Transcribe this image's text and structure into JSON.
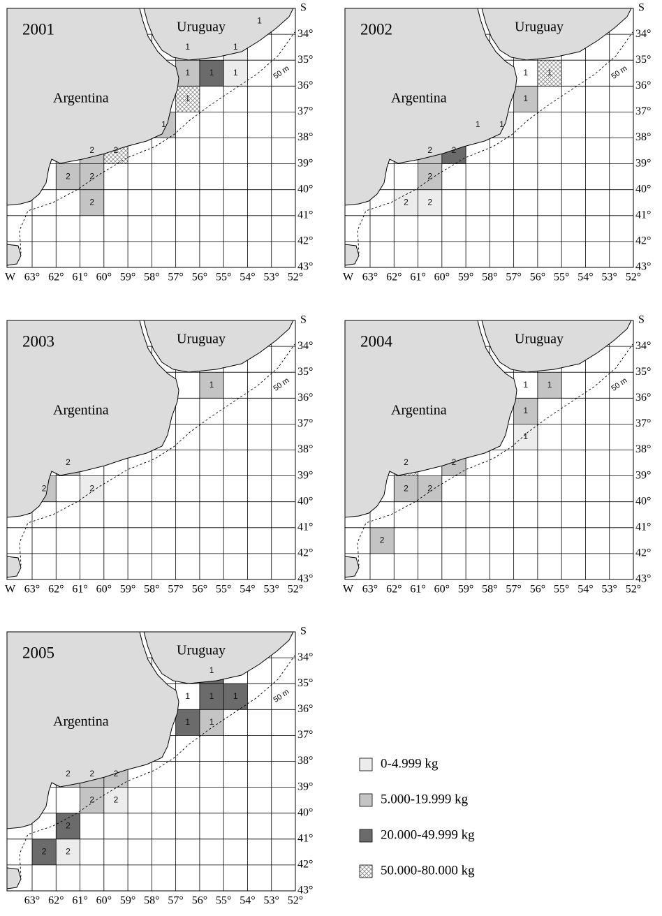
{
  "map": {
    "country_west": "Argentina",
    "country_north": "Uruguay",
    "isobath": "50 m",
    "west": "W",
    "south": "S",
    "lon_labels": [
      "63°",
      "62°",
      "61°",
      "60°",
      "59°",
      "58°",
      "57°",
      "56°",
      "55°",
      "54°",
      "53°",
      "52°"
    ],
    "lat_labels": [
      "34°",
      "35°",
      "36°",
      "37°",
      "38°",
      "39°",
      "40°",
      "41°",
      "42°",
      "43°"
    ]
  },
  "legend": [
    {
      "label": "0-4.999 kg",
      "color": "#ececec",
      "hatch": false
    },
    {
      "label": "5.000-19.999 kg",
      "color": "#c4c4c4",
      "hatch": false
    },
    {
      "label": "20.000-49.999 kg",
      "color": "#6b6b6b",
      "hatch": false
    },
    {
      "label": "50.000-80.000 kg",
      "color": "#ffffff",
      "hatch": true
    }
  ],
  "panels": [
    {
      "year": "2001",
      "cells": [
        {
          "lon": 54,
          "lat": 34,
          "label": "1",
          "class": 1
        },
        {
          "lon": 57,
          "lat": 35,
          "label": "1",
          "class": 0
        },
        {
          "lon": 55,
          "lat": 35,
          "label": "1",
          "class": 0
        },
        {
          "lon": 57,
          "lat": 36,
          "label": "1",
          "class": 1
        },
        {
          "lon": 56,
          "lat": 36,
          "label": "1",
          "class": 2
        },
        {
          "lon": 55,
          "lat": 36,
          "label": "1",
          "class": 0
        },
        {
          "lon": 57,
          "lat": 37,
          "label": "1",
          "class": 3
        },
        {
          "lon": 58,
          "lat": 38,
          "label": "1",
          "class": 1
        },
        {
          "lon": 61,
          "lat": 39,
          "label": "2",
          "class": 1
        },
        {
          "lon": 60,
          "lat": 39,
          "label": "2",
          "class": 3
        },
        {
          "lon": 62,
          "lat": 40,
          "label": "2",
          "class": 1
        },
        {
          "lon": 61,
          "lat": 40,
          "label": "2",
          "class": 1
        },
        {
          "lon": 61,
          "lat": 41,
          "label": "2",
          "class": 1
        }
      ]
    },
    {
      "year": "2002",
      "cells": [
        {
          "lon": 57,
          "lat": 36,
          "label": "1",
          "class": null
        },
        {
          "lon": 56,
          "lat": 36,
          "label": "1",
          "class": 3
        },
        {
          "lon": 57,
          "lat": 37,
          "label": "1",
          "class": 1
        },
        {
          "lon": 58,
          "lat": 38,
          "label": "1",
          "class": 0
        },
        {
          "lon": 59,
          "lat": 38,
          "label": "1",
          "class": null
        },
        {
          "lon": 61,
          "lat": 39,
          "label": "2",
          "class": 1
        },
        {
          "lon": 60,
          "lat": 39,
          "label": "2",
          "class": 2
        },
        {
          "lon": 61,
          "lat": 40,
          "label": "2",
          "class": 1
        },
        {
          "lon": 62,
          "lat": 41,
          "label": "2",
          "class": 0
        },
        {
          "lon": 61,
          "lat": 41,
          "label": "2",
          "class": 0
        }
      ]
    },
    {
      "year": "2003",
      "cells": [
        {
          "lon": 56,
          "lat": 36,
          "label": "1",
          "class": 1
        },
        {
          "lon": 62,
          "lat": 39,
          "label": "2",
          "class": 1
        },
        {
          "lon": 63,
          "lat": 40,
          "label": "2",
          "class": 1
        },
        {
          "lon": 61,
          "lat": 40,
          "label": "2",
          "class": 0
        }
      ]
    },
    {
      "year": "2004",
      "cells": [
        {
          "lon": 57,
          "lat": 36,
          "label": "1",
          "class": null
        },
        {
          "lon": 56,
          "lat": 36,
          "label": "1",
          "class": 1
        },
        {
          "lon": 57,
          "lat": 37,
          "label": "1",
          "class": 1
        },
        {
          "lon": 57,
          "lat": 38,
          "label": "1",
          "class": 0
        },
        {
          "lon": 62,
          "lat": 39,
          "label": "2",
          "class": 3
        },
        {
          "lon": 60,
          "lat": 39,
          "label": "2",
          "class": 1
        },
        {
          "lon": 62,
          "lat": 40,
          "label": "2",
          "class": 1
        },
        {
          "lon": 61,
          "lat": 40,
          "label": "2",
          "class": 1
        },
        {
          "lon": 63,
          "lat": 42,
          "label": "2",
          "class": 1
        }
      ]
    },
    {
      "year": "2005",
      "cells": [
        {
          "lon": 56,
          "lat": 35,
          "label": "1",
          "class": 2
        },
        {
          "lon": 57,
          "lat": 36,
          "label": "1",
          "class": null
        },
        {
          "lon": 56,
          "lat": 36,
          "label": "1",
          "class": 2
        },
        {
          "lon": 55,
          "lat": 36,
          "label": "1",
          "class": 2
        },
        {
          "lon": 57,
          "lat": 37,
          "label": "1",
          "class": 2
        },
        {
          "lon": 56,
          "lat": 37,
          "label": "1",
          "class": 1
        },
        {
          "lon": 62,
          "lat": 39,
          "label": "2",
          "class": 1
        },
        {
          "lon": 61,
          "lat": 39,
          "label": "2",
          "class": 1
        },
        {
          "lon": 60,
          "lat": 39,
          "label": "2",
          "class": 1
        },
        {
          "lon": 61,
          "lat": 40,
          "label": "2",
          "class": 1
        },
        {
          "lon": 60,
          "lat": 40,
          "label": "2",
          "class": 0
        },
        {
          "lon": 62,
          "lat": 41,
          "label": "2",
          "class": 2
        },
        {
          "lon": 63,
          "lat": 42,
          "label": "2",
          "class": 2
        },
        {
          "lon": 62,
          "lat": 42,
          "label": "2",
          "class": 0
        }
      ]
    }
  ]
}
